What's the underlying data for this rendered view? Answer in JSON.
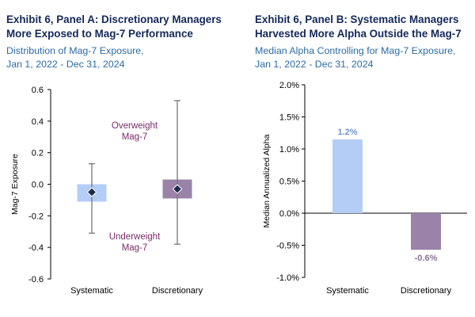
{
  "colors": {
    "title": "#14285a",
    "subtitle": "#2c6ba5",
    "systematic_fill": "#b4cdf7",
    "discretionary_fill": "#9b82a8",
    "marker": "#1e2a4a",
    "whisker": "#777777",
    "annotation": "#7a2a6b",
    "label_systematic": "#6f95d0",
    "label_discretionary": "#8a7398"
  },
  "panel_a": {
    "title_line1": "Exhibit 6, Panel A: Discretionary Managers",
    "title_line2": "More Exposed to Mag-7 Performance",
    "subtitle_line1": "Distribution of Mag-7 Exposure,",
    "subtitle_line2": "Jan 1, 2022 - Dec 31, 2024"
  },
  "panel_b": {
    "title_line1": "Exhibit 6, Panel B: Systematic Managers",
    "title_line2": "Harvested More Alpha Outside the Mag-7",
    "subtitle_line1": "Median Alpha Controlling for Mag-7 Exposure,",
    "subtitle_line2": "Jan 1, 2022 - Dec 31, 2024"
  },
  "chart_data": [
    {
      "type": "box",
      "ylabel": "Mag-7 Exposure",
      "ylim": [
        -0.6,
        0.6
      ],
      "yticks": [
        0.6,
        0.4,
        0.2,
        0.0,
        -0.2,
        -0.4,
        -0.6
      ],
      "ytick_labels": [
        "0.6",
        "0.4",
        "0.2",
        "0.0",
        "-0.2",
        "-0.4",
        "-0.6"
      ],
      "categories": [
        "Systematic",
        "Discretionary"
      ],
      "boxes": [
        {
          "category": "Systematic",
          "whisker_high": 0.13,
          "box_high": 0.0,
          "box_low": -0.11,
          "median": -0.05,
          "whisker_low": -0.31
        },
        {
          "category": "Discretionary",
          "whisker_high": 0.53,
          "box_high": 0.03,
          "box_low": -0.09,
          "median": -0.03,
          "whisker_low": -0.38
        }
      ],
      "annotations": [
        {
          "lines": [
            "Overweight",
            "Mag-7"
          ]
        },
        {
          "lines": [
            "Underweight",
            "Mag-7"
          ]
        }
      ],
      "grid": false
    },
    {
      "type": "bar",
      "ylabel": "Median Annualized Alpha",
      "ylim": [
        -1.0,
        2.0
      ],
      "yticks": [
        2.0,
        1.5,
        1.0,
        0.5,
        0.0,
        -0.5,
        -1.0
      ],
      "ytick_labels": [
        "2.0%",
        "1.5%",
        "1.0%",
        "0.5%",
        "0.0%",
        "-0.5%",
        "-1.0%"
      ],
      "categories": [
        "Systematic",
        "Discretionary"
      ],
      "values": [
        1.15,
        -0.57
      ],
      "data_labels": [
        "1.2%",
        "-0.6%"
      ],
      "grid": false
    }
  ]
}
